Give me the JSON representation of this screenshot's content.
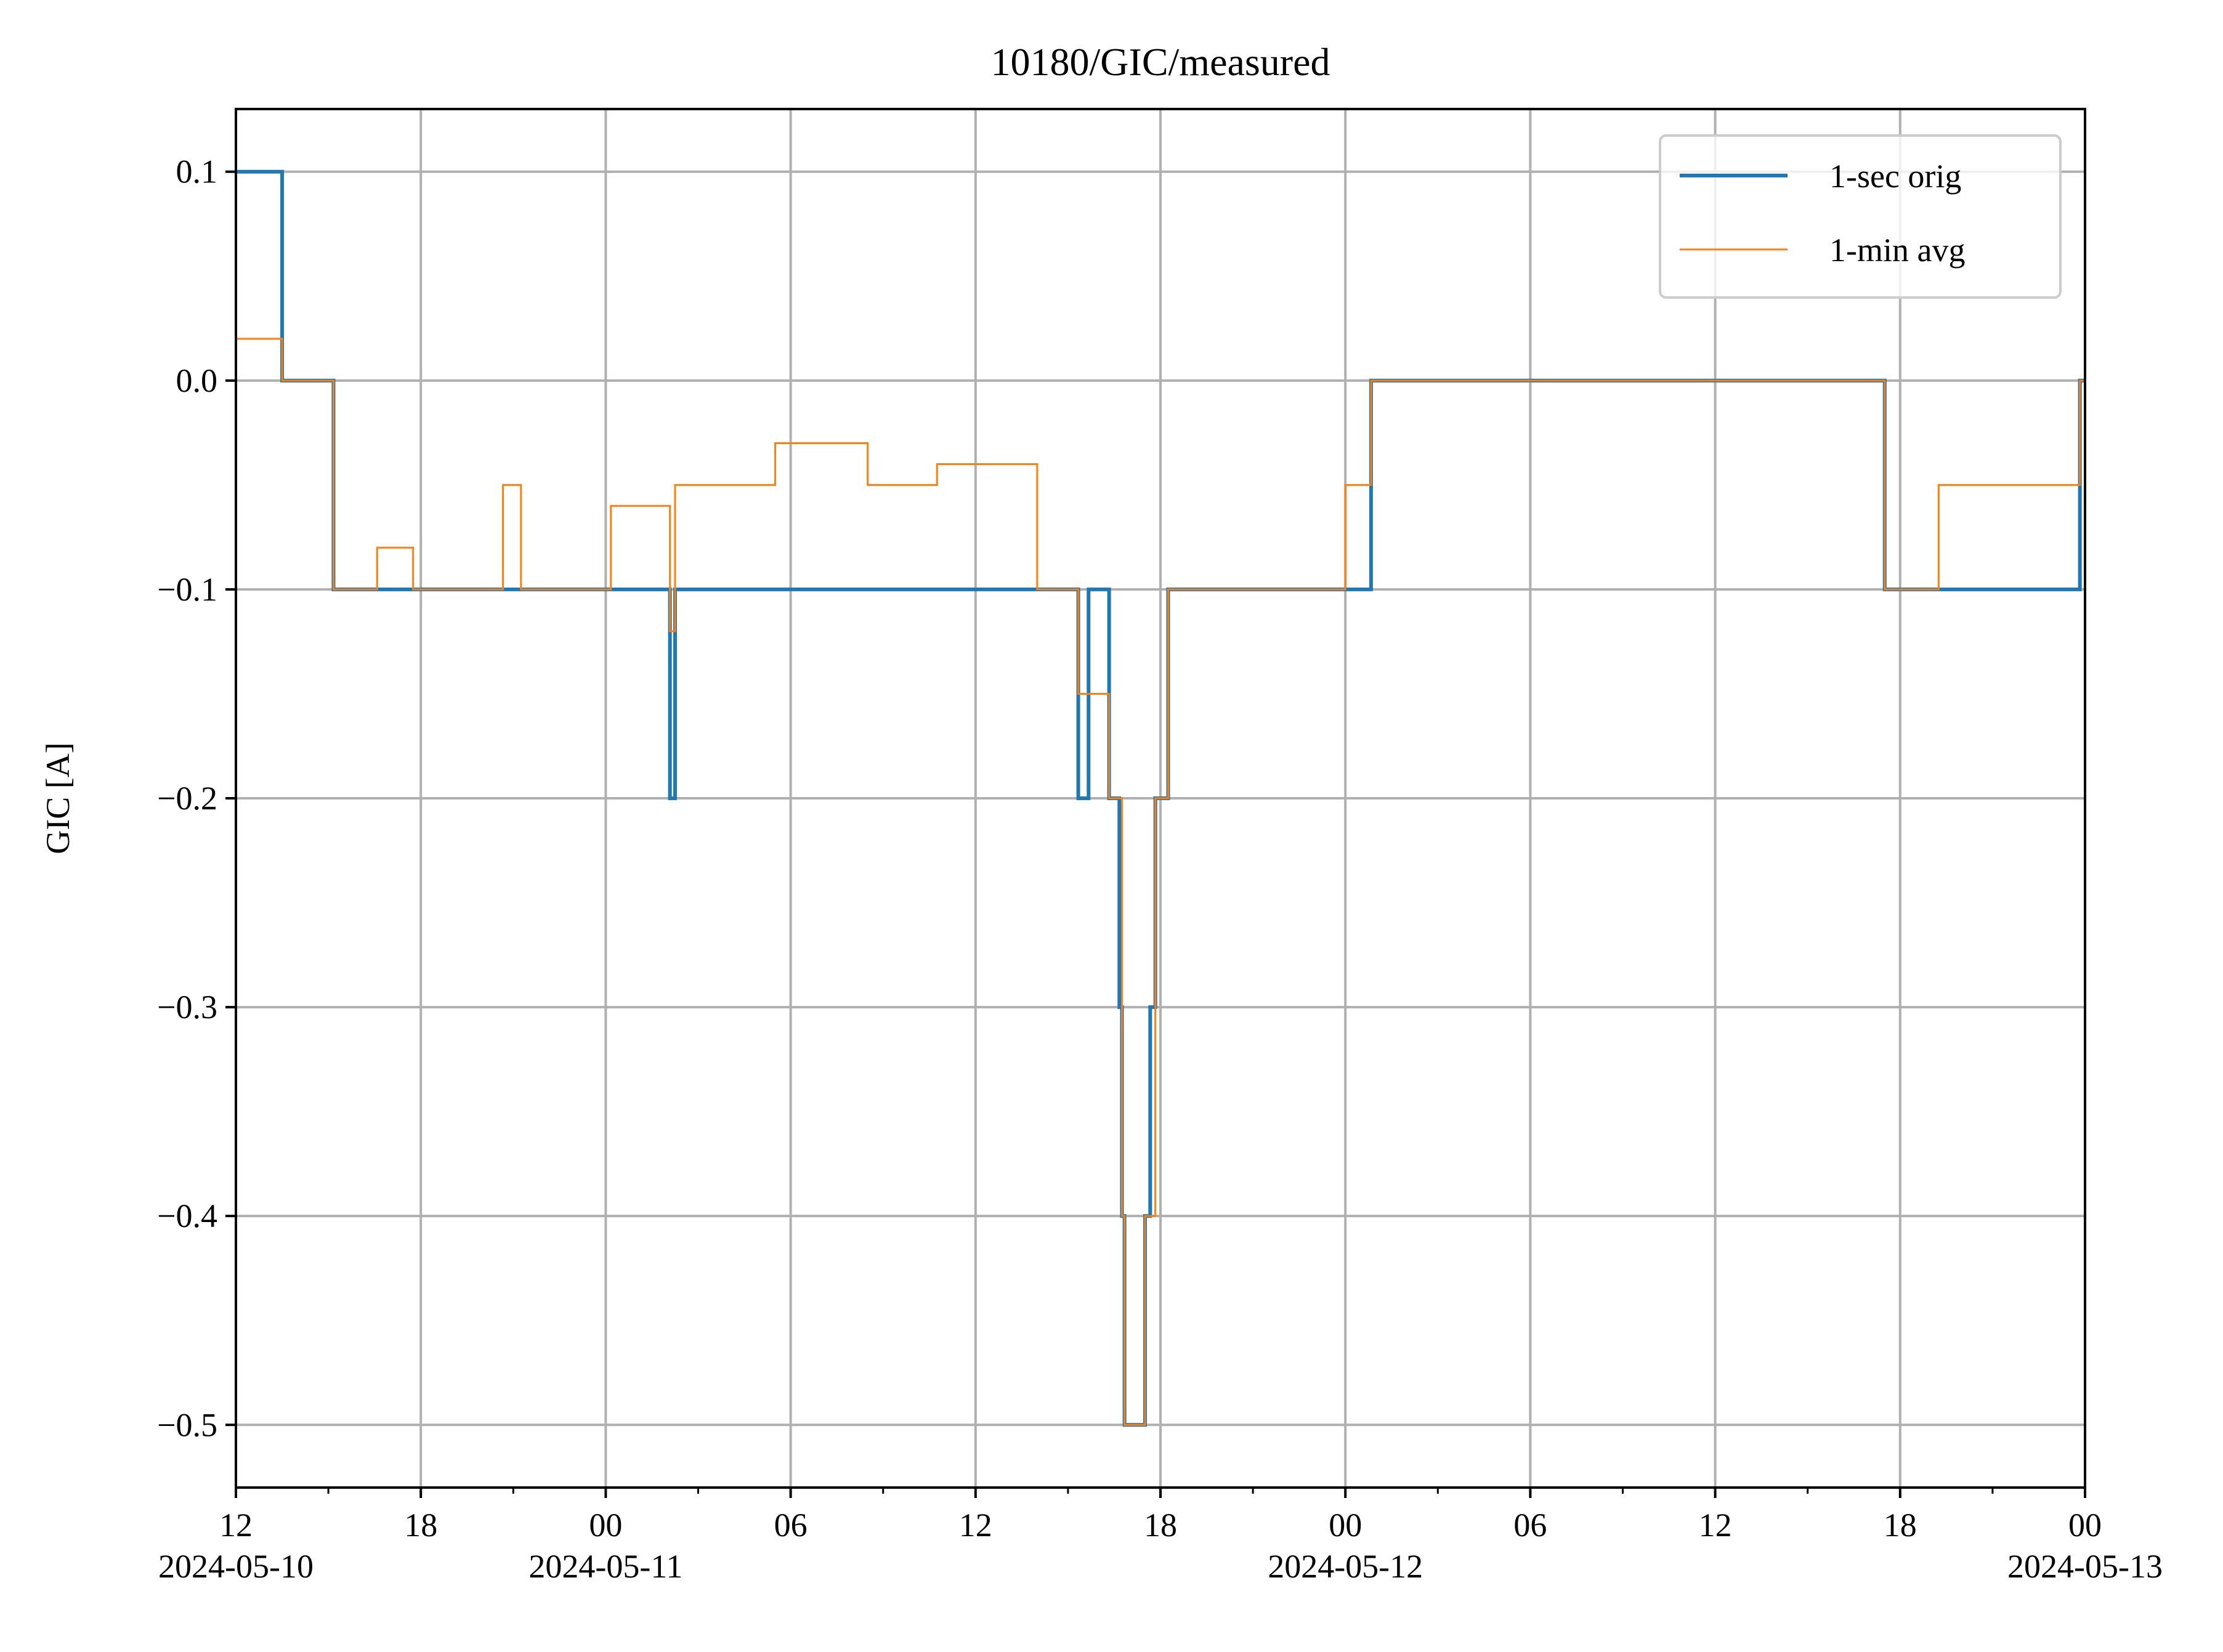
{
  "chart_data": {
    "type": "line",
    "title": "10180/GIC/measured",
    "xlabel": "",
    "ylabel": "GIC [A]",
    "xlim": [
      "2024-05-10 12:00",
      "2024-05-13 00:00"
    ],
    "ylim": [
      -0.53,
      0.13
    ],
    "grid": true,
    "legend_position": "top-right",
    "x_ticks": [
      {
        "t": "2024-05-10 12:00",
        "label": "12",
        "date_label": "2024-05-10"
      },
      {
        "t": "2024-05-10 18:00",
        "label": "18",
        "date_label": ""
      },
      {
        "t": "2024-05-11 00:00",
        "label": "00",
        "date_label": "2024-05-11"
      },
      {
        "t": "2024-05-11 06:00",
        "label": "06",
        "date_label": ""
      },
      {
        "t": "2024-05-11 12:00",
        "label": "12",
        "date_label": ""
      },
      {
        "t": "2024-05-11 18:00",
        "label": "18",
        "date_label": ""
      },
      {
        "t": "2024-05-12 00:00",
        "label": "00",
        "date_label": "2024-05-12"
      },
      {
        "t": "2024-05-12 06:00",
        "label": "06",
        "date_label": ""
      },
      {
        "t": "2024-05-12 12:00",
        "label": "12",
        "date_label": ""
      },
      {
        "t": "2024-05-12 18:00",
        "label": "18",
        "date_label": ""
      },
      {
        "t": "2024-05-13 00:00",
        "label": "00",
        "date_label": "2024-05-13"
      }
    ],
    "y_ticks": [
      {
        "v": 0.1,
        "label": "0.1"
      },
      {
        "v": 0.0,
        "label": "0.0"
      },
      {
        "v": -0.1,
        "label": "−0.1"
      },
      {
        "v": -0.2,
        "label": "−0.2"
      },
      {
        "v": -0.3,
        "label": "−0.3"
      },
      {
        "v": -0.4,
        "label": "−0.4"
      },
      {
        "v": -0.5,
        "label": "−0.5"
      }
    ],
    "series": [
      {
        "name": "1-sec orig",
        "color": "#1f77b4",
        "steps": [
          [
            "2024-05-10 12:00",
            0.1
          ],
          [
            "2024-05-10 13:30",
            0.0
          ],
          [
            "2024-05-10 15:10",
            -0.1
          ],
          [
            "2024-05-10 15:45",
            -0.1
          ],
          [
            "2024-05-10 16:35",
            -0.1
          ],
          [
            "2024-05-10 17:45",
            -0.1
          ],
          [
            "2024-05-10 20:40",
            -0.1
          ],
          [
            "2024-05-10 21:15",
            -0.1
          ],
          [
            "2024-05-10 22:50",
            -0.1
          ],
          [
            "2024-05-11 00:10",
            -0.1
          ],
          [
            "2024-05-11 02:05",
            -0.2
          ],
          [
            "2024-05-11 02:15",
            -0.1
          ],
          [
            "2024-05-11 03:30",
            -0.1
          ],
          [
            "2024-05-11 05:30",
            -0.1
          ],
          [
            "2024-05-11 08:30",
            -0.1
          ],
          [
            "2024-05-11 10:45",
            -0.1
          ],
          [
            "2024-05-11 14:00",
            -0.1
          ],
          [
            "2024-05-11 15:20",
            -0.2
          ],
          [
            "2024-05-11 15:40",
            -0.1
          ],
          [
            "2024-05-11 16:20",
            -0.2
          ],
          [
            "2024-05-11 16:40",
            -0.3
          ],
          [
            "2024-05-11 16:45",
            -0.4
          ],
          [
            "2024-05-11 16:50",
            -0.5
          ],
          [
            "2024-05-11 17:30",
            -0.4
          ],
          [
            "2024-05-11 17:40",
            -0.3
          ],
          [
            "2024-05-11 17:50",
            -0.2
          ],
          [
            "2024-05-11 18:15",
            -0.1
          ],
          [
            "2024-05-11 23:00",
            -0.1
          ],
          [
            "2024-05-12 00:00",
            -0.1
          ],
          [
            "2024-05-12 00:50",
            0.0
          ],
          [
            "2024-05-12 16:30",
            0.0
          ],
          [
            "2024-05-12 17:30",
            -0.1
          ],
          [
            "2024-05-12 19:15",
            -0.1
          ],
          [
            "2024-05-12 23:50",
            0.0
          ],
          [
            "2024-05-13 00:00",
            0.0
          ]
        ]
      },
      {
        "name": "1-min avg",
        "color": "#ff7f0e",
        "steps": [
          [
            "2024-05-10 12:00",
            0.02
          ],
          [
            "2024-05-10 13:30",
            0.0
          ],
          [
            "2024-05-10 15:10",
            -0.1
          ],
          [
            "2024-05-10 16:35",
            -0.08
          ],
          [
            "2024-05-10 17:45",
            -0.1
          ],
          [
            "2024-05-10 20:40",
            -0.05
          ],
          [
            "2024-05-10 21:15",
            -0.1
          ],
          [
            "2024-05-11 00:10",
            -0.06
          ],
          [
            "2024-05-11 02:05",
            -0.12
          ],
          [
            "2024-05-11 02:15",
            -0.05
          ],
          [
            "2024-05-11 05:30",
            -0.03
          ],
          [
            "2024-05-11 08:30",
            -0.05
          ],
          [
            "2024-05-11 10:45",
            -0.04
          ],
          [
            "2024-05-11 14:00",
            -0.1
          ],
          [
            "2024-05-11 15:20",
            -0.15
          ],
          [
            "2024-05-11 16:20",
            -0.2
          ],
          [
            "2024-05-11 16:45",
            -0.4
          ],
          [
            "2024-05-11 16:50",
            -0.5
          ],
          [
            "2024-05-11 17:30",
            -0.4
          ],
          [
            "2024-05-11 17:50",
            -0.2
          ],
          [
            "2024-05-11 18:15",
            -0.1
          ],
          [
            "2024-05-12 00:00",
            -0.05
          ],
          [
            "2024-05-12 00:50",
            0.0
          ],
          [
            "2024-05-12 17:30",
            -0.1
          ],
          [
            "2024-05-12 19:15",
            -0.05
          ],
          [
            "2024-05-12 23:50",
            0.0
          ],
          [
            "2024-05-13 00:00",
            0.0
          ]
        ]
      }
    ]
  }
}
